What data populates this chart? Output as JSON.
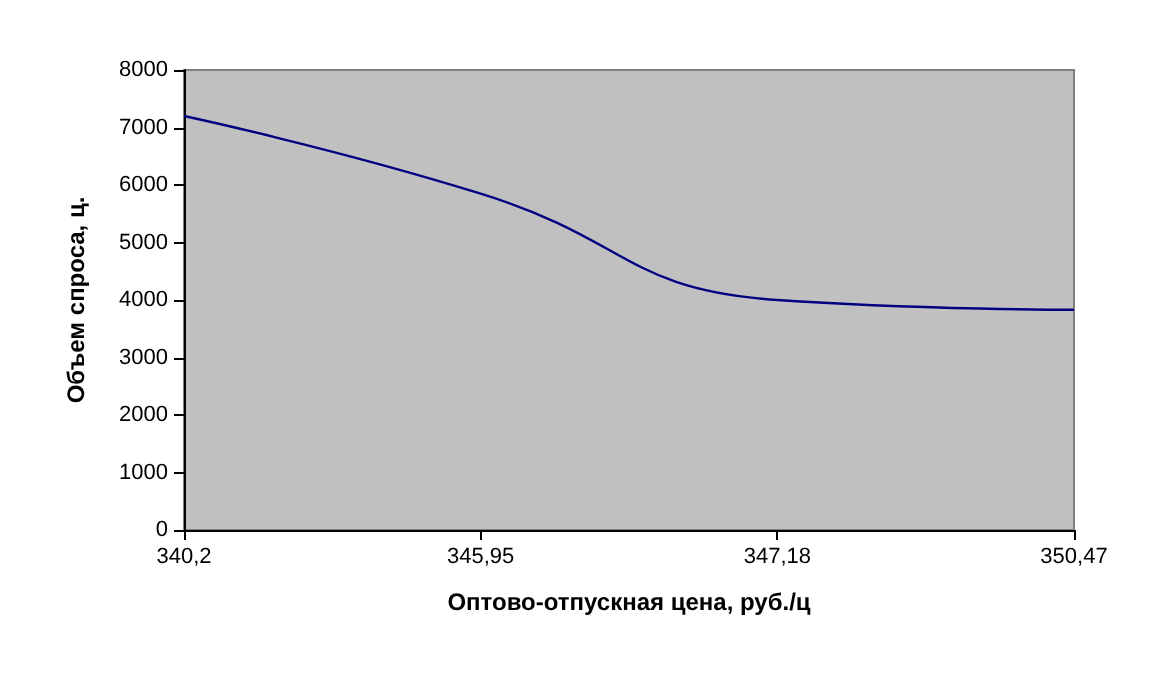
{
  "chart_data": {
    "type": "line",
    "xlabel": "Оптово-отпускная цена, руб./ц",
    "ylabel": "Объем спроса, ц.",
    "categories": [
      "340,2",
      "345,95",
      "347,18",
      "350,47"
    ],
    "series": [
      {
        "color": "#000080",
        "values": [
          7200,
          5850,
          4000,
          3830
        ]
      }
    ],
    "ylim": [
      0,
      8000
    ],
    "yticks": [
      0,
      1000,
      2000,
      3000,
      4000,
      5000,
      6000,
      7000,
      8000
    ],
    "grid": false,
    "marker": "none",
    "line_style": "solid"
  }
}
